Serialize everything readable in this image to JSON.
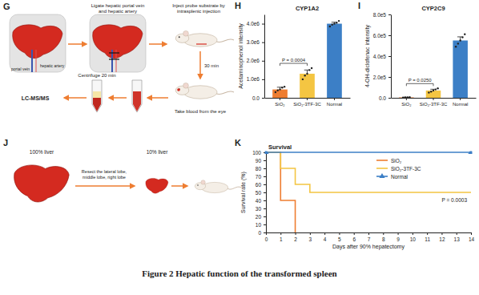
{
  "chart_data": [
    {
      "panel_label": "H",
      "type": "bar",
      "title": "CYP1A2",
      "y_label": "Acetaminophenol intensity",
      "categories": [
        "SiO₂",
        "SiO₂-3TF-3C",
        "Normal"
      ],
      "ylim": [
        0,
        4500000
      ],
      "yticks": [
        {
          "value": 0,
          "label": "0.0"
        },
        {
          "value": 1000000,
          "label": "1.0e6"
        },
        {
          "value": 2000000,
          "label": "2.0e6"
        },
        {
          "value": 3000000,
          "label": "3.0e6"
        },
        {
          "value": 4000000,
          "label": "4.0e6"
        }
      ],
      "series": [
        {
          "colors": [
            "#ee7d31",
            "#f4c542",
            "#3c7fc6"
          ],
          "values": [
            450000,
            1300000,
            4000000
          ],
          "errors": [
            120000,
            200000,
            80000
          ],
          "points": [
            [
              300000,
              400000,
              450000,
              550000,
              600000
            ],
            [
              1000000,
              1200000,
              1300000,
              1500000,
              1600000
            ],
            [
              3850000,
              3950000,
              4000000,
              4050000,
              4150000
            ]
          ]
        }
      ],
      "annotations": [
        {
          "text": "P = 0.0004",
          "between": [
            "SiO₂",
            "SiO₂-3TF-3C"
          ]
        }
      ]
    },
    {
      "panel_label": "I",
      "type": "bar",
      "title": "CYP2C9",
      "y_label": "4-OH-diclofenac intensity",
      "categories": [
        "SiO₂",
        "SiO₂-3TF-3C",
        "Normal"
      ],
      "ylim": [
        0,
        800000
      ],
      "yticks": [
        {
          "value": 0,
          "label": "0.0"
        },
        {
          "value": 200000,
          "label": "2.0e5"
        },
        {
          "value": 400000,
          "label": "4.0e5"
        },
        {
          "value": 600000,
          "label": "6.0e5"
        },
        {
          "value": 800000,
          "label": "8.0e5"
        }
      ],
      "series": [
        {
          "colors": [
            "#ee7d31",
            "#f4c542",
            "#3c7fc6"
          ],
          "values": [
            4000,
            70000,
            550000
          ],
          "errors": [
            1500,
            12000,
            35000
          ],
          "points": [
            [
              2000,
              3500,
              4500,
              6000
            ],
            [
              50000,
              60000,
              70000,
              80000,
              90000
            ],
            [
              490000,
              520000,
              550000,
              580000,
              610000
            ]
          ]
        }
      ],
      "annotations": [
        {
          "text": "P = 0.0250",
          "between": [
            "SiO₂",
            "SiO₂-3TF-3C"
          ]
        }
      ]
    },
    {
      "panel_label": "K",
      "type": "step",
      "title": "Survival",
      "x_label": "Days after 90% hepatectomy",
      "y_label": "Survival rate (%)",
      "xlim": [
        0,
        14
      ],
      "xticks": [
        0,
        1,
        2,
        3,
        4,
        5,
        6,
        7,
        8,
        9,
        10,
        11,
        12,
        13,
        14
      ],
      "ylim": [
        0,
        100
      ],
      "yticks": [
        0,
        10,
        20,
        30,
        40,
        50,
        60,
        70,
        80,
        90,
        100
      ],
      "legend": "upper right",
      "series": [
        {
          "name": "SiO₂",
          "color": "#ee7d31",
          "x": [
            0,
            1,
            2
          ],
          "values": [
            100,
            40,
            0
          ]
        },
        {
          "name": "SiO₂-3TF-3C",
          "color": "#f4c542",
          "x": [
            0,
            1,
            2,
            3,
            14
          ],
          "values": [
            100,
            80,
            60,
            50,
            50
          ]
        },
        {
          "name": "Normal",
          "color": "#3c7fc6",
          "x": [
            0,
            14
          ],
          "values": [
            100,
            100
          ],
          "marker": "triangle"
        }
      ],
      "annotations": [
        {
          "text": "P = 0.0003"
        }
      ]
    }
  ],
  "panels": {
    "G": {
      "label": "G",
      "hepatic_artery": "hepatic artery",
      "portal_vein": "portal vein",
      "ligate": [
        "Ligate hepatic portal vein",
        "and hepatic artery"
      ],
      "inject": [
        "Inject probe substrate by",
        "intrasplenic injection"
      ],
      "wait": "30 min",
      "blood": "Take blood from the eye",
      "centrifuge": "Centrifuge 20 min",
      "analysis": "LC-MS/MS"
    },
    "J": {
      "label": "J",
      "before": "100% liver",
      "after": "10% liver",
      "resect": [
        "Resect the lateral lobe,",
        "middle lobe, right lobe"
      ]
    }
  },
  "caption": "Figure 2 Hepatic function of the transformed spleen"
}
